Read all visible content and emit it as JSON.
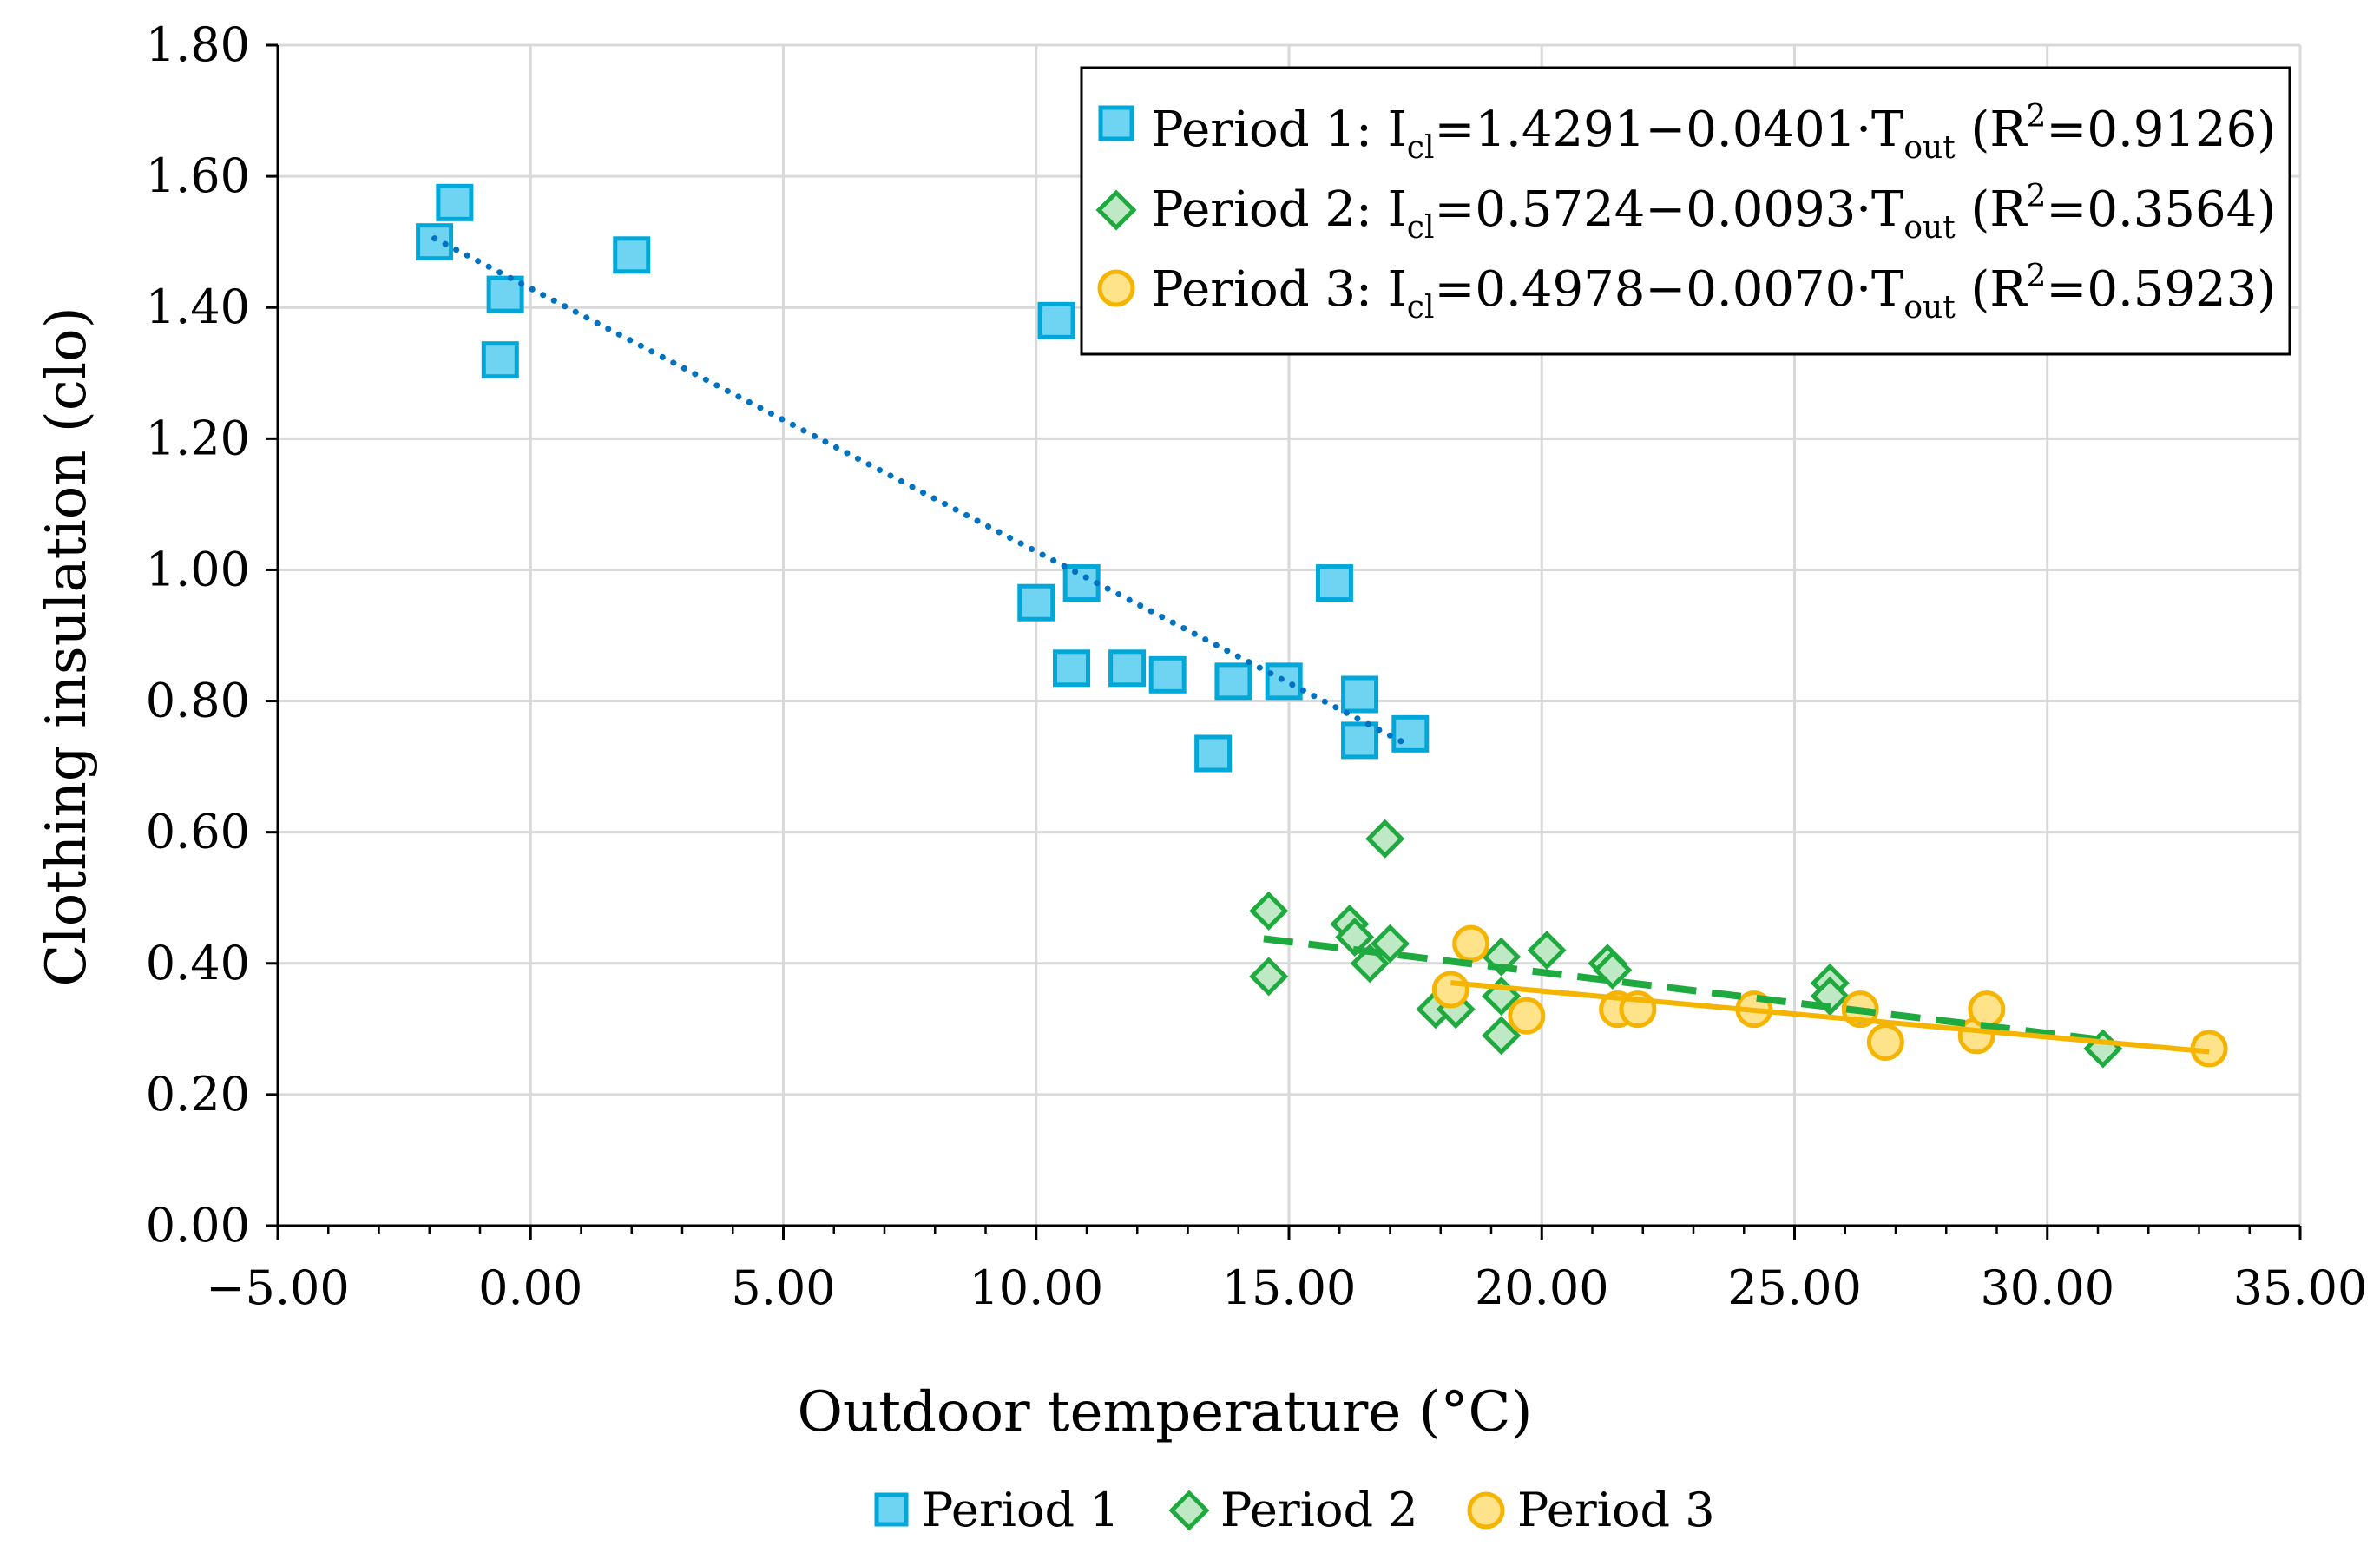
{
  "chart_data": {
    "type": "scatter",
    "title": "",
    "xlabel": "Outdoor temperature (°C)",
    "ylabel": "Clothing insulation (clo)",
    "xlim": [
      -5,
      35
    ],
    "ylim": [
      0,
      1.8
    ],
    "x_ticks": [
      "−5.00",
      "0.00",
      "5.00",
      "10.00",
      "15.00",
      "20.00",
      "25.00",
      "30.00",
      "35.00"
    ],
    "y_ticks": [
      "0.00",
      "0.20",
      "0.40",
      "0.60",
      "0.80",
      "1.00",
      "1.20",
      "1.40",
      "1.60",
      "1.80"
    ],
    "grid": true,
    "colors": {
      "p1_fill": "#6fd3f2",
      "p1_stroke": "#00a7d9",
      "p1_trend": "#0070c0",
      "p2_fill": "#bfe8c4",
      "p2_stroke": "#1faa3f",
      "p2_trend": "#1faa3f",
      "p3_fill": "#ffe38a",
      "p3_stroke": "#f5b400",
      "p3_trend": "#f5b400"
    },
    "series": [
      {
        "name": "Period 1",
        "marker": "square",
        "points": [
          [
            -1.9,
            1.5
          ],
          [
            -1.5,
            1.56
          ],
          [
            -0.5,
            1.42
          ],
          [
            -0.6,
            1.32
          ],
          [
            2.0,
            1.48
          ],
          [
            10.4,
            1.38
          ],
          [
            10.0,
            0.95
          ],
          [
            10.9,
            0.98
          ],
          [
            10.7,
            0.85
          ],
          [
            11.8,
            0.85
          ],
          [
            12.6,
            0.84
          ],
          [
            13.9,
            0.83
          ],
          [
            14.9,
            0.83
          ],
          [
            13.5,
            0.72
          ],
          [
            15.9,
            0.98
          ],
          [
            16.4,
            0.81
          ],
          [
            16.4,
            0.74
          ],
          [
            17.4,
            0.75
          ]
        ],
        "trend": {
          "style": "dotted",
          "x_range": [
            -1.9,
            17.4
          ],
          "intercept": 1.4291,
          "slope": -0.0401
        }
      },
      {
        "name": "Period 2",
        "marker": "diamond",
        "points": [
          [
            14.6,
            0.48
          ],
          [
            14.6,
            0.38
          ],
          [
            16.2,
            0.46
          ],
          [
            16.3,
            0.44
          ],
          [
            16.6,
            0.4
          ],
          [
            16.9,
            0.59
          ],
          [
            17.0,
            0.43
          ],
          [
            17.9,
            0.33
          ],
          [
            18.3,
            0.33
          ],
          [
            19.2,
            0.41
          ],
          [
            19.2,
            0.35
          ],
          [
            19.2,
            0.29
          ],
          [
            20.1,
            0.42
          ],
          [
            21.3,
            0.4
          ],
          [
            21.4,
            0.39
          ],
          [
            25.7,
            0.37
          ],
          [
            25.7,
            0.35
          ],
          [
            31.1,
            0.27
          ]
        ],
        "trend": {
          "style": "dashed",
          "x_range": [
            14.5,
            31.1
          ],
          "intercept": 0.5724,
          "slope": -0.0093
        }
      },
      {
        "name": "Period 3",
        "marker": "circle",
        "points": [
          [
            18.2,
            0.36
          ],
          [
            18.6,
            0.43
          ],
          [
            19.7,
            0.32
          ],
          [
            21.5,
            0.33
          ],
          [
            21.9,
            0.33
          ],
          [
            24.2,
            0.33
          ],
          [
            26.3,
            0.33
          ],
          [
            26.8,
            0.28
          ],
          [
            28.6,
            0.29
          ],
          [
            28.8,
            0.33
          ],
          [
            33.2,
            0.27
          ]
        ],
        "trend": {
          "style": "solid",
          "x_range": [
            18.2,
            33.2
          ],
          "intercept": 0.4978,
          "slope": -0.007
        }
      }
    ],
    "inset_legend": [
      {
        "label": "Period 1: ",
        "eq": {
          "i": "I",
          "i_sub": "cl",
          "mid": "=1.4291−0.0401·T",
          "t_sub": "out",
          "r": " (R",
          "r_sup": "2",
          "rest": "=0.9126)"
        }
      },
      {
        "label": "Period 2: ",
        "eq": {
          "i": "I",
          "i_sub": "cl",
          "mid": "=0.5724−0.0093·T",
          "t_sub": "out",
          "r": " (R",
          "r_sup": "2",
          "rest": "=0.3564)"
        }
      },
      {
        "label": "Period 3: ",
        "eq": {
          "i": "I",
          "i_sub": "cl",
          "mid": "=0.4978−0.0070·T",
          "t_sub": "out",
          "r": " (R",
          "r_sup": "2",
          "rest": "=0.5923)"
        }
      }
    ],
    "bottom_legend": [
      "Period 1",
      "Period 2",
      "Period 3"
    ],
    "legend_position": "top-right inset and bottom"
  }
}
